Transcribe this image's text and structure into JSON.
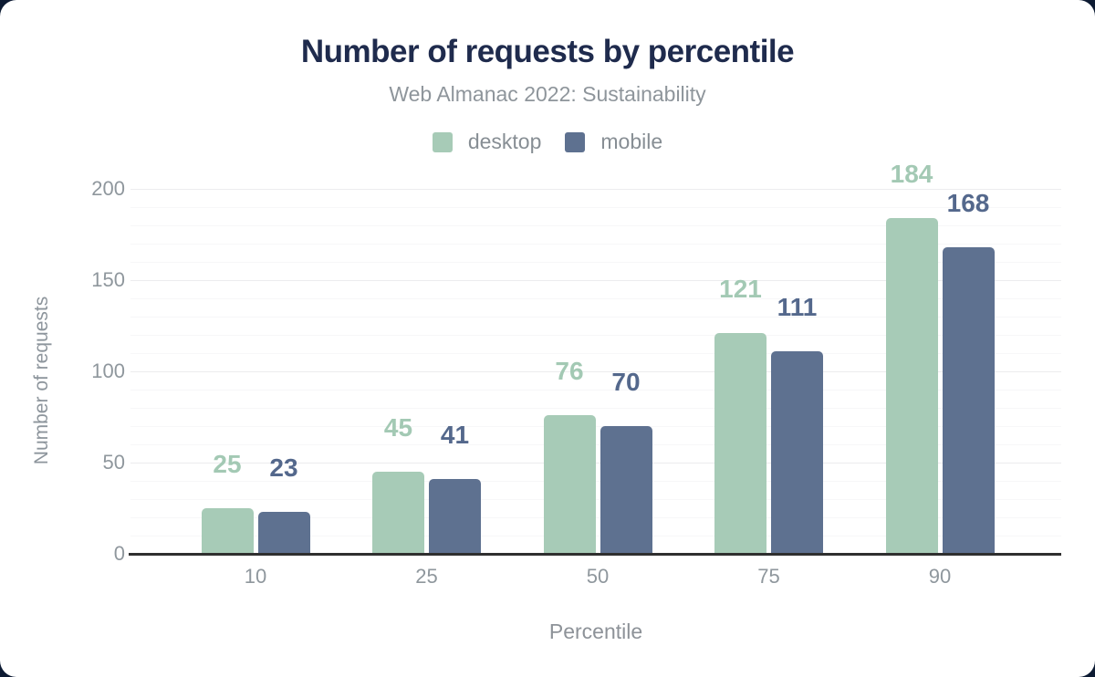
{
  "page": {
    "background_color": "#0d1b33",
    "card_color": "#ffffff"
  },
  "chart_data": {
    "type": "bar",
    "title": "Number of requests by percentile",
    "subtitle": "Web Almanac 2022: Sustainability",
    "xlabel": "Percentile",
    "ylabel": "Number of requests",
    "categories": [
      "10",
      "25",
      "50",
      "75",
      "90"
    ],
    "series": [
      {
        "name": "desktop",
        "color": "#a7cbb7",
        "label_color": "#a3c9b4",
        "values": [
          25,
          45,
          76,
          121,
          184
        ]
      },
      {
        "name": "mobile",
        "color": "#5e7190",
        "label_color": "#54688c",
        "values": [
          23,
          41,
          70,
          111,
          168
        ]
      }
    ],
    "ylim": [
      0,
      210
    ],
    "yticks": [
      0,
      50,
      100,
      150,
      200
    ],
    "minor_grid_step": 10,
    "grid": "on",
    "legend_position": "top",
    "axis_text_color": "#8f979d",
    "title_color": "#1f2b4d"
  }
}
